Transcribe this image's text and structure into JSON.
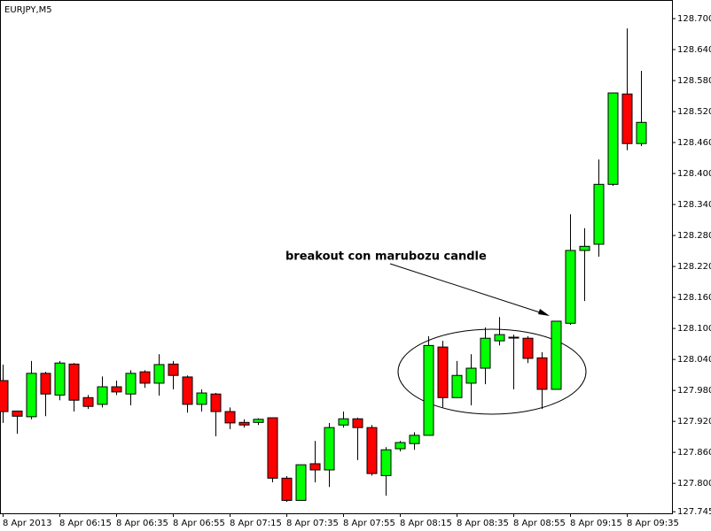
{
  "chart_data": {
    "type": "candlestick",
    "title": "EURJPY,M5",
    "annotation": "breakout con marubozu candle",
    "categories": [
      "8 Apr 2013",
      null,
      null,
      null,
      "8 Apr 06:15",
      null,
      null,
      null,
      "8 Apr 06:35",
      null,
      null,
      null,
      "8 Apr 06:55",
      null,
      null,
      null,
      "8 Apr 07:15",
      null,
      null,
      null,
      "8 Apr 07:35",
      null,
      null,
      null,
      "8 Apr 07:55",
      null,
      null,
      null,
      "8 Apr 08:15",
      null,
      null,
      null,
      "8 Apr 08:35",
      null,
      null,
      null,
      "8 Apr 08:55",
      null,
      null,
      null,
      "8 Apr 09:15",
      null,
      null,
      null,
      "8 Apr 09:35",
      null
    ],
    "open": [
      127.999,
      127.94,
      127.929,
      128.013,
      127.971,
      128.031,
      127.966,
      127.953,
      127.987,
      127.973,
      128.016,
      127.994,
      128.031,
      128.006,
      127.953,
      127.973,
      127.939,
      127.918,
      127.918,
      127.927,
      127.81,
      127.767,
      127.838,
      127.826,
      127.913,
      127.925,
      127.908,
      127.815,
      127.867,
      127.877,
      127.893,
      128.064,
      127.966,
      127.994,
      128.023,
      128.076,
      128.083,
      128.081,
      128.043,
      127.982,
      128.11,
      128.251,
      128.263,
      128.379,
      128.554,
      128.458
    ],
    "high": [
      128.03,
      127.94,
      128.037,
      128.016,
      128.037,
      128.033,
      127.971,
      128.007,
      127.999,
      128.019,
      128.019,
      128.05,
      128.037,
      128.009,
      127.982,
      127.975,
      127.947,
      127.924,
      127.926,
      127.927,
      127.814,
      127.836,
      127.882,
      127.917,
      127.939,
      127.927,
      127.913,
      127.87,
      127.882,
      127.899,
      128.085,
      128.076,
      128.037,
      128.05,
      128.102,
      128.122,
      128.088,
      128.085,
      128.054,
      128.114,
      128.321,
      128.294,
      128.427,
      128.556,
      128.681,
      128.599
    ],
    "low": [
      127.917,
      127.896,
      127.924,
      127.93,
      127.961,
      127.939,
      127.944,
      127.947,
      127.971,
      127.951,
      127.985,
      127.97,
      127.982,
      127.937,
      127.939,
      127.891,
      127.905,
      127.908,
      127.913,
      127.802,
      127.764,
      127.767,
      127.802,
      127.793,
      127.908,
      127.845,
      127.815,
      127.776,
      127.862,
      127.865,
      127.893,
      127.947,
      127.965,
      127.951,
      127.992,
      128.067,
      127.982,
      128.033,
      127.944,
      127.982,
      128.107,
      128.153,
      128.239,
      128.376,
      128.445,
      128.453
    ],
    "close": [
      127.939,
      127.93,
      128.013,
      127.973,
      128.033,
      127.961,
      127.949,
      127.987,
      127.977,
      128.013,
      127.994,
      128.03,
      128.009,
      127.953,
      127.975,
      127.939,
      127.917,
      127.913,
      127.924,
      127.81,
      127.767,
      127.836,
      127.826,
      127.908,
      127.925,
      127.908,
      127.819,
      127.865,
      127.879,
      127.893,
      128.067,
      127.966,
      128.009,
      128.023,
      128.081,
      128.088,
      128.083,
      128.042,
      127.982,
      128.114,
      128.251,
      128.259,
      128.379,
      128.556,
      128.458,
      128.499
    ],
    "up_color": "#00ff00",
    "down_color": "#ff0000",
    "ylim": [
      127.742,
      128.736
    ],
    "yticks": [
      127.745,
      {
        "value": 127.8,
        "label": "127.800"
      },
      {
        "value": 127.86,
        "label": "127.860"
      },
      {
        "value": 127.92,
        "label": "127.920"
      },
      {
        "value": 127.98,
        "label": "127.980"
      },
      {
        "value": 128.04,
        "label": "128.040"
      },
      {
        "value": 128.1,
        "label": "128.100"
      },
      {
        "value": 128.16,
        "label": "128.160"
      },
      {
        "value": 128.22,
        "label": "128.220"
      },
      {
        "value": 128.28,
        "label": "128.280"
      },
      {
        "value": 128.34,
        "label": "128.340"
      },
      {
        "value": 128.4,
        "label": "128.400"
      },
      {
        "value": 128.46,
        "label": "128.460"
      },
      {
        "value": 128.52,
        "label": "128.520"
      },
      {
        "value": 128.58,
        "label": "128.580"
      },
      {
        "value": 128.64,
        "label": "128.640"
      },
      {
        "value": 128.7,
        "label": "128.700"
      }
    ]
  }
}
